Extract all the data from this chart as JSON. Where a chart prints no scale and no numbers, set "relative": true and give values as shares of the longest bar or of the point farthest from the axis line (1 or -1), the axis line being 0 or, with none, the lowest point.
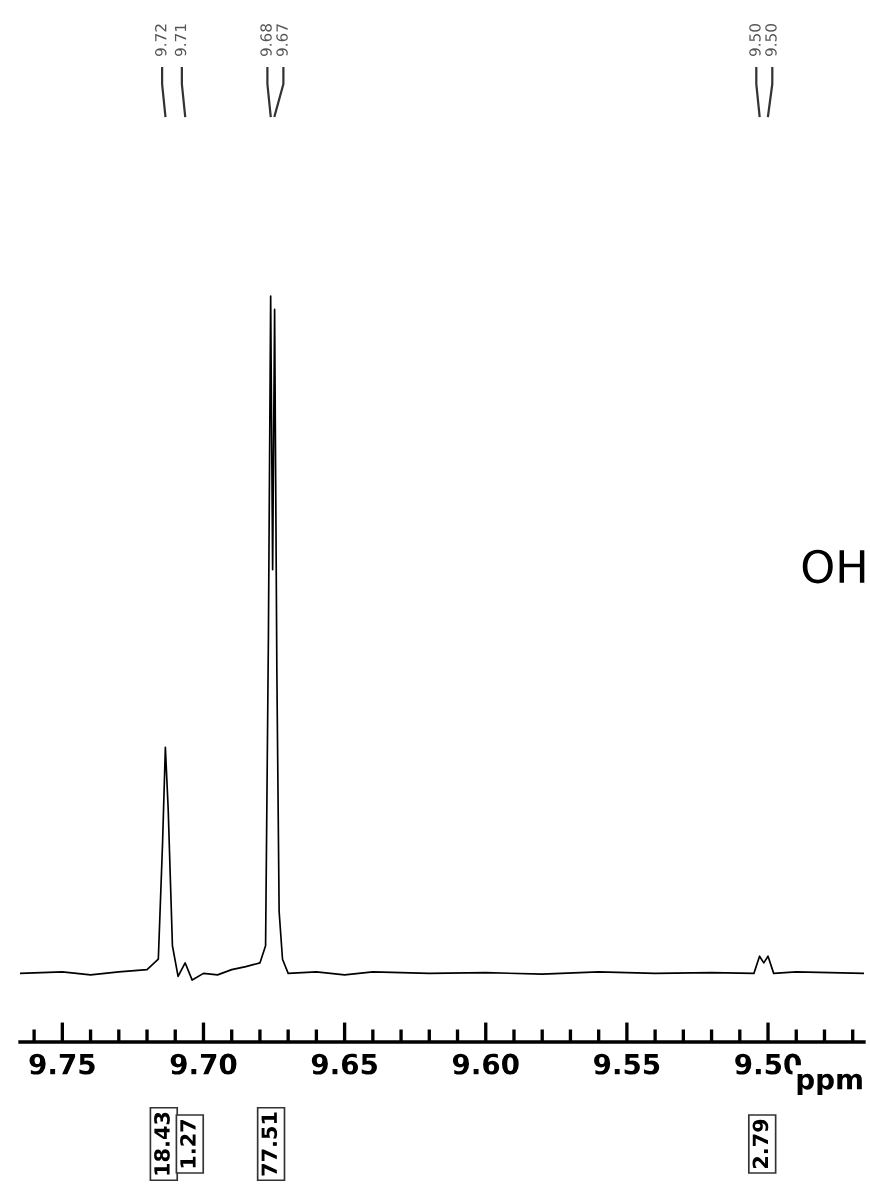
{
  "chart_data": {
    "type": "line",
    "relative": true,
    "xlabel": "ppm",
    "xlim": [
      9.765,
      9.466
    ],
    "xticks": [
      9.75,
      {
        "value": 9.7,
        "label": "9.70"
      },
      9.65,
      {
        "value": 9.6,
        "label": "9.60"
      },
      9.55,
      {
        "value": 9.5,
        "label": "9.50"
      }
    ],
    "grid": false,
    "legend": false,
    "marker": "none",
    "line_style": "solid",
    "series": [
      {
        "color": "#000000",
        "x": [
          9.765,
          9.75,
          9.74,
          9.73,
          9.72,
          9.716,
          9.7145,
          9.7135,
          9.7125,
          9.711,
          9.709,
          9.7065,
          9.704,
          9.7,
          9.695,
          9.69,
          9.685,
          9.68,
          9.678,
          9.677,
          9.6762,
          9.6755,
          9.6748,
          9.674,
          9.6732,
          9.672,
          9.67,
          9.66,
          9.65,
          9.64,
          9.62,
          9.6,
          9.58,
          9.56,
          9.54,
          9.52,
          9.505,
          9.503,
          9.5015,
          9.5,
          9.498,
          9.49,
          9.466
        ],
        "values": [
          0.092,
          0.094,
          0.09,
          0.094,
          0.097,
          0.111,
          0.266,
          0.395,
          0.312,
          0.129,
          0.088,
          0.106,
          0.083,
          0.092,
          0.09,
          0.097,
          0.101,
          0.106,
          0.129,
          0.542,
          1.0,
          0.633,
          0.982,
          0.496,
          0.175,
          0.111,
          0.092,
          0.094,
          0.09,
          0.094,
          0.092,
          0.093,
          0.091,
          0.094,
          0.092,
          0.093,
          0.092,
          0.115,
          0.106,
          0.115,
          0.092,
          0.094,
          0.092
        ]
      }
    ],
    "annotations": [
      {
        "text": "9.72",
        "x": 9.7135
      },
      {
        "text": "9.71",
        "x": 9.7065
      },
      {
        "text": "9.68",
        "x": 9.6762
      },
      {
        "text": "9.67",
        "x": 9.6748
      },
      {
        "text": "9.50",
        "x": 9.503
      },
      {
        "text": "9.50",
        "x": 9.5
      },
      "18.43",
      "1.27",
      "77.51",
      "2.79",
      "OH"
    ]
  }
}
